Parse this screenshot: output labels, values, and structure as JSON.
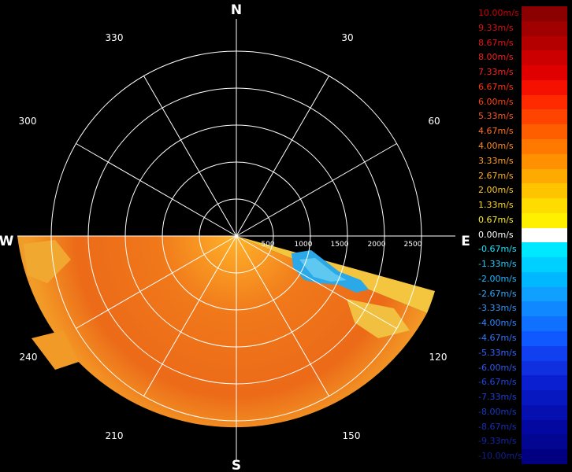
{
  "compass": {
    "north": "N",
    "south": "S",
    "east": "E",
    "west": "W"
  },
  "angle_labels": [
    "30",
    "60",
    "120",
    "150",
    "210",
    "240",
    "300",
    "330"
  ],
  "range_labels": [
    "500",
    "1000",
    "1500",
    "2000",
    "2500"
  ],
  "legend": [
    {
      "label": "10.00m/s",
      "color": "#8b0000",
      "text_color": "#cc0000"
    },
    {
      "label": "9.33m/s",
      "color": "#a00000",
      "text_color": "#dd1010"
    },
    {
      "label": "8.67m/s",
      "color": "#b50000",
      "text_color": "#e51515"
    },
    {
      "label": "8.00m/s",
      "color": "#cc0000",
      "text_color": "#ee2020"
    },
    {
      "label": "7.33m/s",
      "color": "#e00000",
      "text_color": "#ff2020"
    },
    {
      "label": "6.67m/s",
      "color": "#f51000",
      "text_color": "#ff3010"
    },
    {
      "label": "6.00m/s",
      "color": "#ff2a00",
      "text_color": "#ff4010"
    },
    {
      "label": "5.33m/s",
      "color": "#ff4400",
      "text_color": "#ff5520"
    },
    {
      "label": "4.67m/s",
      "color": "#ff5e00",
      "text_color": "#ff7020"
    },
    {
      "label": "4.00m/s",
      "color": "#ff7800",
      "text_color": "#ff8a20"
    },
    {
      "label": "3.33m/s",
      "color": "#ff9000",
      "text_color": "#ffa020"
    },
    {
      "label": "2.67m/s",
      "color": "#ffaa00",
      "text_color": "#ffb020"
    },
    {
      "label": "2.00m/s",
      "color": "#ffc400",
      "text_color": "#ffc820"
    },
    {
      "label": "1.33m/s",
      "color": "#ffdc00",
      "text_color": "#ffd820"
    },
    {
      "label": "0.67m/s",
      "color": "#fff000",
      "text_color": "#ffee30"
    },
    {
      "label": "0.00m/s",
      "color": "#ffffff",
      "text_color": "#ffffff"
    },
    {
      "label": "-0.67m/s",
      "color": "#00e8ff",
      "text_color": "#20e0ff"
    },
    {
      "label": "-1.33m/s",
      "color": "#00d0ff",
      "text_color": "#20ccff"
    },
    {
      "label": "-2.00m/s",
      "color": "#00b8ff",
      "text_color": "#20b8ff"
    },
    {
      "label": "-2.67m/s",
      "color": "#10a0ff",
      "text_color": "#30a8ff"
    },
    {
      "label": "-3.33m/s",
      "color": "#1088ff",
      "text_color": "#3098ff"
    },
    {
      "label": "-4.00m/s",
      "color": "#1070ff",
      "text_color": "#3088ff"
    },
    {
      "label": "-4.67m/s",
      "color": "#1058ff",
      "text_color": "#3078ff"
    },
    {
      "label": "-5.33m/s",
      "color": "#1040f0",
      "text_color": "#3068ff"
    },
    {
      "label": "-6.00m/s",
      "color": "#1030e0",
      "text_color": "#3058f0"
    },
    {
      "label": "-6.67m/s",
      "color": "#0a20d0",
      "text_color": "#2048e0"
    },
    {
      "label": "-7.33m/s",
      "color": "#0818c0",
      "text_color": "#2040d0"
    },
    {
      "label": "-8.00m/s",
      "color": "#0610b0",
      "text_color": "#1838c0"
    },
    {
      "label": "-8.67m/s",
      "color": "#0408a0",
      "text_color": "#1830b0"
    },
    {
      "label": "-9.33m/s",
      "color": "#020690",
      "text_color": "#1428a0"
    },
    {
      "label": "-10.00m/s",
      "color": "#000080",
      "text_color": "#102090"
    }
  ]
}
